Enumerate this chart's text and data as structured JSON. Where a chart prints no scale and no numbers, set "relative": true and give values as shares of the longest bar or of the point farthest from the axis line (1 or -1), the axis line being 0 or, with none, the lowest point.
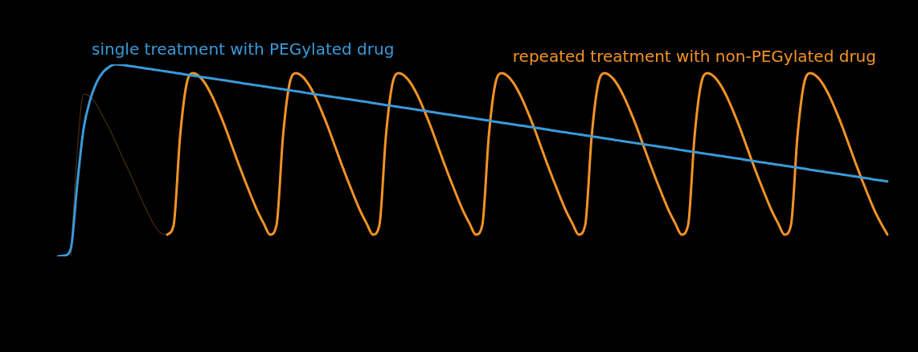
{
  "chart_data": {
    "type": "line",
    "relative": true,
    "legend": false,
    "marker": "none",
    "line_style": "solid",
    "categories": [
      null,
      null,
      null,
      null,
      null,
      null,
      null,
      null,
      null,
      null,
      null,
      null,
      null,
      null,
      null,
      null,
      null,
      null,
      null,
      null,
      null,
      null,
      null,
      null,
      null,
      null,
      null,
      null,
      null,
      null,
      null,
      null,
      null,
      null,
      null,
      null,
      null,
      null,
      null,
      null,
      null,
      null,
      null,
      null,
      null,
      null,
      null,
      null,
      null,
      null,
      null,
      null,
      null,
      null,
      null,
      null,
      null,
      null,
      null,
      null,
      null,
      null,
      null,
      null,
      null,
      null,
      null,
      null,
      null,
      null,
      null,
      null,
      null,
      null,
      null,
      null,
      null,
      null,
      null,
      null,
      null,
      null,
      null,
      null,
      null,
      null,
      null,
      null,
      null,
      null,
      null,
      null,
      null,
      null,
      null,
      null,
      null,
      null,
      null,
      null,
      null,
      null,
      null,
      null,
      null,
      null,
      null,
      null,
      null,
      null,
      null,
      null,
      null,
      null,
      null,
      null,
      null,
      null,
      null,
      null,
      null,
      null,
      null,
      null,
      null,
      null,
      null,
      null,
      null,
      null
    ],
    "series": [
      {
        "name": "single treatment with PEGylated drug",
        "color": "#3a9ad9",
        "values": [
          0,
          0.004,
          0.038,
          0.372,
          0.665,
          0.812,
          0.904,
          0.958,
          0.987,
          1,
          0.997,
          0.992,
          0.987,
          0.982,
          0.977,
          0.972,
          0.967,
          0.962,
          0.957,
          0.952,
          0.946,
          0.941,
          0.936,
          0.931,
          0.926,
          0.921,
          0.916,
          0.911,
          0.906,
          0.9,
          0.895,
          0.89,
          0.885,
          0.88,
          0.875,
          0.87,
          0.865,
          0.86,
          0.855,
          0.849,
          0.844,
          0.839,
          0.834,
          0.829,
          0.824,
          0.819,
          0.814,
          0.809,
          0.804,
          0.798,
          0.793,
          0.788,
          0.783,
          0.778,
          0.773,
          0.768,
          0.763,
          0.758,
          0.752,
          0.747,
          0.742,
          0.737,
          0.732,
          0.727,
          0.722,
          0.717,
          0.712,
          0.707,
          0.701,
          0.696,
          0.691,
          0.686,
          0.681,
          0.676,
          0.671,
          0.666,
          0.661,
          0.655,
          0.65,
          0.645,
          0.64,
          0.635,
          0.63,
          0.625,
          0.62,
          0.615,
          0.61,
          0.604,
          0.599,
          0.594,
          0.589,
          0.584,
          0.579,
          0.574,
          0.569,
          0.564,
          0.559,
          0.553,
          0.548,
          0.543,
          0.538,
          0.533,
          0.528,
          0.523,
          0.518,
          0.513,
          0.508,
          0.502,
          0.497,
          0.492,
          0.487,
          0.482,
          0.477,
          0.472,
          0.467,
          0.462,
          0.457,
          0.451,
          0.446,
          0.441,
          0.436,
          0.431,
          0.426,
          0.421,
          0.416,
          0.411,
          0.406,
          0.4,
          0.395,
          0.39
        ]
      },
      {
        "name": "repeated treatment with non-PEGylated drug",
        "color": "#f39325",
        "values": [
          null,
          null,
          null,
          null,
          null,
          null,
          null,
          null,
          null,
          null,
          null,
          null,
          null,
          null,
          null,
          null,
          null,
          0.113,
          0.163,
          0.623,
          0.895,
          0.954,
          0.937,
          0.895,
          0.833,
          0.757,
          0.674,
          0.582,
          0.49,
          0.402,
          0.318,
          0.238,
          0.172,
          0.113,
          0.163,
          0.623,
          0.895,
          0.954,
          0.937,
          0.895,
          0.833,
          0.757,
          0.674,
          0.582,
          0.49,
          0.402,
          0.318,
          0.238,
          0.172,
          0.113,
          0.163,
          0.623,
          0.895,
          0.954,
          0.937,
          0.895,
          0.833,
          0.757,
          0.674,
          0.582,
          0.49,
          0.402,
          0.318,
          0.238,
          0.172,
          0.113,
          0.163,
          0.623,
          0.895,
          0.954,
          0.937,
          0.895,
          0.833,
          0.757,
          0.674,
          0.582,
          0.49,
          0.402,
          0.318,
          0.238,
          0.172,
          0.113,
          0.163,
          0.623,
          0.895,
          0.954,
          0.937,
          0.895,
          0.833,
          0.757,
          0.674,
          0.582,
          0.49,
          0.402,
          0.318,
          0.238,
          0.172,
          0.113,
          0.163,
          0.623,
          0.895,
          0.954,
          0.937,
          0.895,
          0.833,
          0.757,
          0.674,
          0.582,
          0.49,
          0.402,
          0.318,
          0.238,
          0.172,
          0.113,
          0.163,
          0.623,
          0.895,
          0.954,
          0.937,
          0.895,
          0.833,
          0.757,
          0.674,
          0.582,
          0.49,
          0.402,
          0.318,
          0.238,
          0.172,
          0.113
        ]
      },
      {
        "color": "#4a2e0a",
        "values": [
          null,
          null,
          0,
          0.54,
          0.845,
          0.833,
          0.791,
          0.728,
          0.665,
          0.594,
          0.519,
          0.448,
          0.372,
          0.297,
          0.226,
          0.163,
          0.121,
          0.113,
          null,
          null,
          null,
          null,
          null,
          null,
          null,
          null,
          null,
          null,
          null,
          null,
          null,
          null,
          null,
          null,
          null,
          null,
          null,
          null,
          null,
          null,
          null,
          null,
          null,
          null,
          null,
          null,
          null,
          null,
          null,
          null,
          null,
          null,
          null,
          null,
          null,
          null,
          null,
          null,
          null,
          null,
          null,
          null,
          null,
          null,
          null,
          null,
          null,
          null,
          null,
          null,
          null,
          null,
          null,
          null,
          null,
          null,
          null,
          null,
          null,
          null,
          null,
          null,
          null,
          null,
          null,
          null,
          null,
          null,
          null,
          null,
          null,
          null,
          null,
          null,
          null,
          null,
          null,
          null,
          null,
          null,
          null,
          null,
          null,
          null,
          null,
          null,
          null,
          null,
          null,
          null,
          null,
          null,
          null,
          null,
          null,
          null,
          null,
          null,
          null,
          null,
          null,
          null,
          null,
          null,
          null,
          null,
          null,
          null,
          null,
          null
        ]
      }
    ]
  }
}
